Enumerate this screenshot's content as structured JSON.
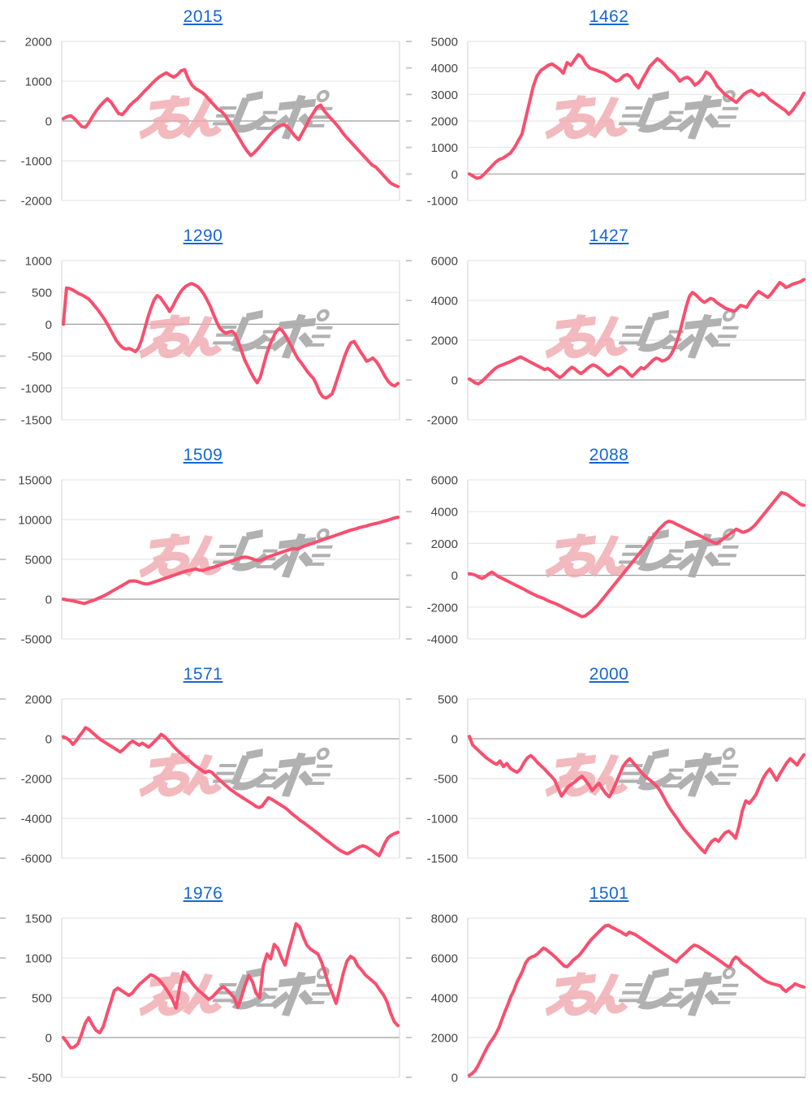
{
  "page": {
    "background": "#ffffff"
  },
  "style": {
    "line_color": "#f84f6e",
    "title_color": "#1766d2",
    "tick_label_color": "#454545",
    "grid_color": "#e7e7e7",
    "zero_line_color": "#9e9e9e",
    "plot_border_color": "#dadada",
    "axis_stub_color": "#c9c9c9",
    "watermark_pink": "#efa9af",
    "watermark_gray": "#ababab"
  },
  "watermark": {
    "text": "みんレポ"
  },
  "chart_data": [
    {
      "type": "line",
      "title": "2015",
      "ylabel": "",
      "xlabel": "",
      "grid": true,
      "legend": "none",
      "ylim": [
        -2000,
        2000
      ],
      "yticks": [
        2000,
        1000,
        0,
        -1000,
        -2000
      ],
      "values": [
        60,
        110,
        130,
        60,
        -40,
        -140,
        -160,
        -40,
        120,
        260,
        380,
        480,
        560,
        470,
        330,
        190,
        160,
        260,
        380,
        470,
        540,
        640,
        740,
        830,
        930,
        1020,
        1100,
        1160,
        1210,
        1150,
        1100,
        1160,
        1260,
        1290,
        1060,
        900,
        810,
        760,
        700,
        610,
        500,
        400,
        300,
        240,
        140,
        -10,
        -160,
        -310,
        -460,
        -620,
        -760,
        -870,
        -790,
        -690,
        -580,
        -470,
        -360,
        -260,
        -170,
        -120,
        -90,
        -150,
        -260,
        -380,
        -470,
        -300,
        -130,
        60,
        200,
        350,
        400,
        250,
        140,
        40,
        -60,
        -170,
        -300,
        -410,
        -510,
        -610,
        -710,
        -810,
        -910,
        -1010,
        -1110,
        -1160,
        -1260,
        -1360,
        -1460,
        -1560,
        -1610,
        -1650
      ]
    },
    {
      "type": "line",
      "title": "1462",
      "ylabel": "",
      "xlabel": "",
      "grid": true,
      "legend": "none",
      "ylim": [
        -1000,
        5000
      ],
      "yticks": [
        5000,
        4000,
        3000,
        2000,
        1000,
        0,
        -1000
      ],
      "values": [
        0,
        -80,
        -160,
        -130,
        0,
        150,
        300,
        450,
        550,
        600,
        700,
        800,
        1000,
        1250,
        1500,
        2100,
        2700,
        3300,
        3700,
        3900,
        4000,
        4100,
        4150,
        4050,
        3950,
        3800,
        4200,
        4100,
        4300,
        4500,
        4400,
        4150,
        4000,
        3950,
        3900,
        3850,
        3800,
        3700,
        3600,
        3500,
        3550,
        3700,
        3750,
        3650,
        3400,
        3250,
        3550,
        3800,
        4050,
        4200,
        4350,
        4250,
        4100,
        3950,
        3850,
        3700,
        3500,
        3600,
        3650,
        3550,
        3350,
        3450,
        3600,
        3850,
        3750,
        3550,
        3300,
        3150,
        3000,
        2900,
        2800,
        2700,
        2850,
        3000,
        3100,
        3150,
        3050,
        2950,
        3050,
        2950,
        2800,
        2700,
        2600,
        2500,
        2400,
        2250,
        2400,
        2600,
        2800,
        3050
      ]
    },
    {
      "type": "line",
      "title": "1290",
      "ylabel": "",
      "xlabel": "",
      "grid": true,
      "legend": "none",
      "ylim": [
        -1500,
        1000
      ],
      "yticks": [
        1000,
        500,
        0,
        -500,
        -1000,
        -1500
      ],
      "values": [
        0,
        570,
        560,
        540,
        510,
        480,
        460,
        430,
        400,
        350,
        290,
        230,
        160,
        90,
        10,
        -80,
        -170,
        -260,
        -320,
        -370,
        -390,
        -380,
        -400,
        -430,
        -380,
        -250,
        -80,
        100,
        250,
        380,
        450,
        420,
        350,
        280,
        200,
        280,
        380,
        470,
        540,
        590,
        620,
        640,
        620,
        590,
        540,
        470,
        380,
        280,
        160,
        40,
        -60,
        -110,
        -140,
        -120,
        -110,
        -160,
        -280,
        -420,
        -560,
        -660,
        -760,
        -850,
        -920,
        -830,
        -650,
        -470,
        -330,
        -220,
        -120,
        -70,
        -100,
        -170,
        -260,
        -350,
        -450,
        -540,
        -600,
        -670,
        -740,
        -800,
        -850,
        -950,
        -1070,
        -1140,
        -1160,
        -1130,
        -1090,
        -950,
        -800,
        -650,
        -500,
        -380,
        -290,
        -270,
        -350,
        -430,
        -500,
        -580,
        -560,
        -530,
        -580,
        -650,
        -740,
        -830,
        -900,
        -950,
        -970,
        -930
      ]
    },
    {
      "type": "line",
      "title": "1427",
      "ylabel": "",
      "xlabel": "",
      "grid": true,
      "legend": "none",
      "ylim": [
        -2000,
        6000
      ],
      "yticks": [
        6000,
        4000,
        2000,
        0,
        -2000
      ],
      "values": [
        50,
        -50,
        -150,
        -200,
        -100,
        50,
        200,
        350,
        500,
        620,
        700,
        760,
        820,
        880,
        950,
        1020,
        1100,
        1160,
        1080,
        1000,
        920,
        840,
        760,
        680,
        600,
        520,
        580,
        480,
        350,
        220,
        120,
        220,
        380,
        520,
        640,
        560,
        420,
        320,
        420,
        560,
        680,
        760,
        700,
        600,
        480,
        340,
        220,
        300,
        440,
        560,
        660,
        600,
        480,
        300,
        180,
        320,
        480,
        620,
        560,
        700,
        850,
        1000,
        1100,
        1050,
        950,
        1000,
        1100,
        1300,
        1600,
        2000,
        2500,
        3100,
        3700,
        4200,
        4400,
        4300,
        4150,
        4000,
        3900,
        4000,
        4100,
        4050,
        3900,
        3800,
        3700,
        3600,
        3550,
        3500,
        3450,
        3600,
        3750,
        3700,
        3650,
        3900,
        4100,
        4300,
        4450,
        4350,
        4250,
        4150,
        4300,
        4500,
        4700,
        4900,
        4800,
        4650,
        4700,
        4800,
        4850,
        4900,
        4950,
        5050
      ]
    },
    {
      "type": "line",
      "title": "1509",
      "ylabel": "",
      "xlabel": "",
      "grid": true,
      "legend": "none",
      "ylim": [
        -5000,
        15000
      ],
      "yticks": [
        15000,
        10000,
        5000,
        0,
        -5000
      ],
      "values": [
        0,
        -100,
        -150,
        -250,
        -350,
        -450,
        -550,
        -400,
        -250,
        -100,
        100,
        300,
        500,
        750,
        1000,
        1250,
        1500,
        1750,
        2000,
        2250,
        2300,
        2250,
        2100,
        1950,
        1900,
        2000,
        2150,
        2300,
        2450,
        2600,
        2750,
        2900,
        3050,
        3200,
        3350,
        3500,
        3600,
        3700,
        3800,
        3650,
        3600,
        3750,
        3900,
        4000,
        4150,
        4300,
        4450,
        4600,
        4750,
        4900,
        5050,
        5200,
        5300,
        5250,
        5100,
        4950,
        4850,
        4950,
        5150,
        5350,
        5500,
        5650,
        5800,
        5950,
        6100,
        6250,
        6350,
        6300,
        6450,
        6650,
        6800,
        6950,
        7100,
        7250,
        7400,
        7550,
        7700,
        7850,
        8000,
        8150,
        8300,
        8450,
        8600,
        8750,
        8850,
        9000,
        9100,
        9200,
        9350,
        9450,
        9550,
        9650,
        9800,
        9900,
        10050,
        10200,
        10300
      ]
    },
    {
      "type": "line",
      "title": "2088",
      "ylabel": "",
      "xlabel": "",
      "grid": true,
      "legend": "none",
      "ylim": [
        -4000,
        6000
      ],
      "yticks": [
        6000,
        4000,
        2000,
        0,
        -2000,
        -4000
      ],
      "values": [
        100,
        60,
        0,
        -120,
        -200,
        -80,
        80,
        200,
        60,
        -80,
        -180,
        -280,
        -380,
        -480,
        -580,
        -680,
        -780,
        -880,
        -1000,
        -1100,
        -1200,
        -1300,
        -1380,
        -1450,
        -1550,
        -1650,
        -1720,
        -1800,
        -1900,
        -2000,
        -2100,
        -2200,
        -2300,
        -2400,
        -2500,
        -2600,
        -2550,
        -2400,
        -2250,
        -2050,
        -1850,
        -1600,
        -1350,
        -1100,
        -850,
        -600,
        -350,
        -100,
        150,
        400,
        650,
        900,
        1150,
        1400,
        1650,
        1900,
        2150,
        2400,
        2650,
        2900,
        3100,
        3300,
        3400,
        3350,
        3250,
        3150,
        3050,
        2950,
        2850,
        2750,
        2650,
        2550,
        2450,
        2350,
        2250,
        2150,
        2050,
        2000,
        2150,
        2300,
        2450,
        2600,
        2750,
        2900,
        2800,
        2700,
        2750,
        2850,
        3000,
        3200,
        3450,
        3700,
        3950,
        4200,
        4450,
        4700,
        4950,
        5200,
        5150,
        5050,
        4900,
        4750,
        4600,
        4450,
        4400
      ]
    },
    {
      "type": "line",
      "title": "1571",
      "ylabel": "",
      "xlabel": "",
      "grid": true,
      "legend": "none",
      "ylim": [
        -6000,
        2000
      ],
      "yticks": [
        2000,
        0,
        -2000,
        -4000,
        -6000
      ],
      "values": [
        100,
        30,
        -80,
        -280,
        -120,
        120,
        320,
        560,
        480,
        340,
        200,
        60,
        -60,
        -160,
        -260,
        -360,
        -460,
        -560,
        -660,
        -540,
        -380,
        -220,
        -120,
        -220,
        -320,
        -220,
        -320,
        -420,
        -280,
        -120,
        40,
        220,
        120,
        -40,
        -220,
        -400,
        -560,
        -700,
        -840,
        -980,
        -1120,
        -1260,
        -1380,
        -1480,
        -1600,
        -1700,
        -1620,
        -1680,
        -1840,
        -2000,
        -2140,
        -2280,
        -2420,
        -2560,
        -2660,
        -2780,
        -2880,
        -2980,
        -3080,
        -3180,
        -3280,
        -3400,
        -3460,
        -3380,
        -3160,
        -2960,
        -3040,
        -3140,
        -3240,
        -3340,
        -3440,
        -3560,
        -3700,
        -3840,
        -3960,
        -4100,
        -4200,
        -4320,
        -4440,
        -4560,
        -4680,
        -4800,
        -4940,
        -5060,
        -5180,
        -5300,
        -5420,
        -5540,
        -5640,
        -5720,
        -5780,
        -5700,
        -5600,
        -5500,
        -5420,
        -5380,
        -5440,
        -5540,
        -5640,
        -5760,
        -5880,
        -5560,
        -5200,
        -4960,
        -4840,
        -4760,
        -4700
      ]
    },
    {
      "type": "line",
      "title": "2000",
      "ylabel": "",
      "xlabel": "",
      "grid": true,
      "legend": "none",
      "ylim": [
        -1500,
        500
      ],
      "yticks": [
        500,
        0,
        -500,
        -1000,
        -1500
      ],
      "values": [
        30,
        -80,
        -120,
        -160,
        -200,
        -240,
        -270,
        -300,
        -320,
        -280,
        -350,
        -310,
        -370,
        -400,
        -420,
        -380,
        -300,
        -240,
        -210,
        -250,
        -300,
        -340,
        -380,
        -430,
        -470,
        -520,
        -620,
        -720,
        -660,
        -600,
        -570,
        -540,
        -500,
        -470,
        -520,
        -580,
        -650,
        -600,
        -560,
        -630,
        -690,
        -730,
        -650,
        -550,
        -450,
        -350,
        -290,
        -250,
        -300,
        -350,
        -400,
        -450,
        -490,
        -520,
        -560,
        -600,
        -660,
        -740,
        -820,
        -890,
        -950,
        -1010,
        -1080,
        -1140,
        -1190,
        -1240,
        -1290,
        -1340,
        -1390,
        -1430,
        -1350,
        -1290,
        -1260,
        -1290,
        -1230,
        -1180,
        -1160,
        -1200,
        -1250,
        -1100,
        -900,
        -780,
        -810,
        -760,
        -700,
        -600,
        -500,
        -430,
        -380,
        -450,
        -520,
        -440,
        -370,
        -300,
        -250,
        -290,
        -330,
        -260,
        -200
      ]
    },
    {
      "type": "line",
      "title": "1976",
      "ylabel": "",
      "xlabel": "",
      "grid": true,
      "legend": "none",
      "ylim": [
        -500,
        1500
      ],
      "yticks": [
        1500,
        1000,
        500,
        0,
        -500
      ],
      "values": [
        0,
        -60,
        -130,
        -120,
        -80,
        40,
        180,
        250,
        160,
        90,
        60,
        140,
        290,
        440,
        590,
        620,
        590,
        560,
        530,
        560,
        620,
        670,
        710,
        750,
        790,
        770,
        740,
        690,
        630,
        560,
        480,
        370,
        640,
        820,
        780,
        710,
        650,
        600,
        560,
        520,
        480,
        510,
        560,
        610,
        640,
        600,
        550,
        500,
        380,
        510,
        660,
        780,
        700,
        560,
        500,
        900,
        1050,
        990,
        1170,
        1120,
        1000,
        910,
        1100,
        1260,
        1430,
        1390,
        1260,
        1160,
        1110,
        1080,
        1050,
        950,
        810,
        660,
        550,
        430,
        610,
        810,
        960,
        1020,
        990,
        900,
        850,
        790,
        750,
        710,
        670,
        600,
        540,
        450,
        310,
        200,
        150
      ]
    },
    {
      "type": "line",
      "title": "1501",
      "ylabel": "",
      "xlabel": "",
      "grid": true,
      "legend": "none",
      "ylim": [
        0,
        8000
      ],
      "yticks": [
        8000,
        6000,
        4000,
        2000,
        0
      ],
      "values": [
        100,
        200,
        350,
        600,
        900,
        1200,
        1500,
        1750,
        1950,
        2200,
        2500,
        2900,
        3300,
        3650,
        4050,
        4350,
        4750,
        5050,
        5350,
        5750,
        5950,
        6050,
        6100,
        6200,
        6350,
        6500,
        6420,
        6300,
        6180,
        6050,
        5900,
        5750,
        5600,
        5560,
        5700,
        5880,
        6000,
        6120,
        6300,
        6500,
        6700,
        6900,
        7050,
        7200,
        7350,
        7500,
        7620,
        7650,
        7550,
        7480,
        7400,
        7330,
        7230,
        7150,
        7300,
        7240,
        7180,
        7080,
        6980,
        6880,
        6780,
        6680,
        6580,
        6480,
        6380,
        6280,
        6180,
        6080,
        5980,
        5880,
        5800,
        6000,
        6120,
        6260,
        6400,
        6550,
        6650,
        6600,
        6520,
        6420,
        6320,
        6220,
        6120,
        6020,
        5920,
        5820,
        5700,
        5600,
        5550,
        5900,
        6050,
        5950,
        5760,
        5650,
        5550,
        5440,
        5300,
        5180,
        5060,
        4950,
        4850,
        4780,
        4720,
        4680,
        4640,
        4600,
        4420,
        4320,
        4460,
        4560,
        4700,
        4640,
        4580,
        4540
      ]
    }
  ]
}
